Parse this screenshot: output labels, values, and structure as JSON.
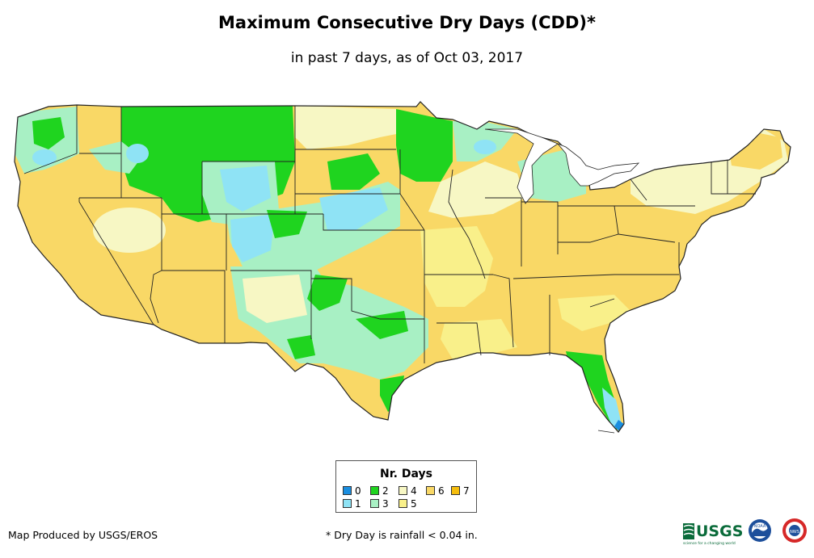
{
  "title": "Maximum Consecutive Dry Days (CDD)*",
  "subtitle": "in past 7 days, as of Oct 03, 2017",
  "legend": {
    "title": "Nr. Days",
    "items": [
      {
        "label": "0",
        "color": "#1a8ee0"
      },
      {
        "label": "1",
        "color": "#8fe3f5"
      },
      {
        "label": "2",
        "color": "#1fd41f"
      },
      {
        "label": "3",
        "color": "#a8f0c4"
      },
      {
        "label": "4",
        "color": "#f7f7c4"
      },
      {
        "label": "5",
        "color": "#f9f08a"
      },
      {
        "label": "6",
        "color": "#f9d866"
      },
      {
        "label": "7",
        "color": "#f5bd0d"
      }
    ]
  },
  "footer": {
    "producer": "Map Produced by USGS/EROS",
    "note": "* Dry Day is rainfall < 0.04 in."
  },
  "logos": {
    "usgs_text": "USGS",
    "usgs_tagline": "science for a changing world",
    "noaa_text": "NOAA",
    "nws_text": "NWS"
  }
}
